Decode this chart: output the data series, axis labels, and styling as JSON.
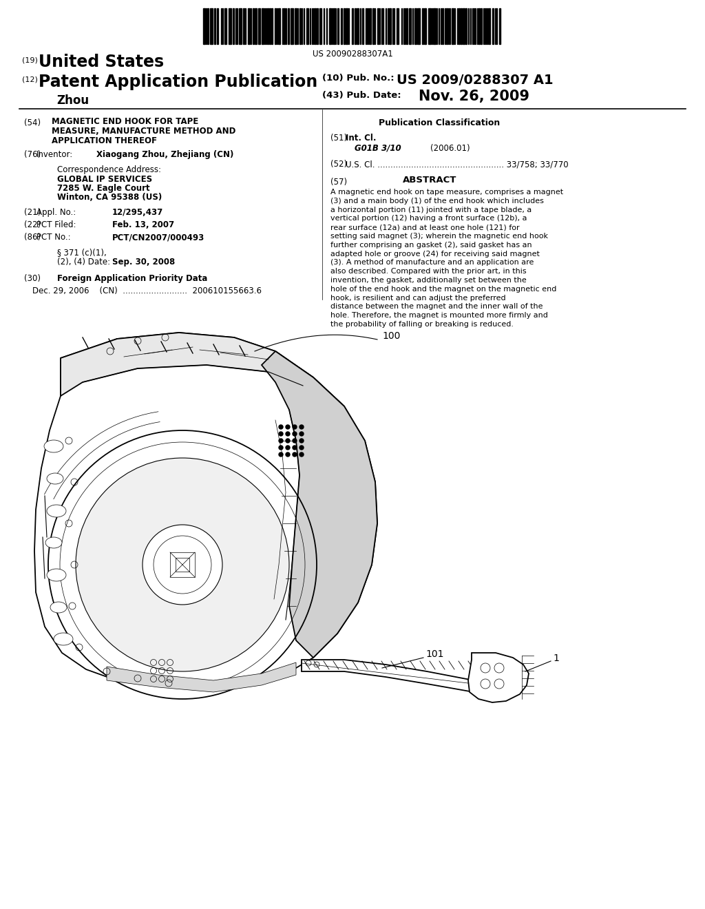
{
  "background_color": "#ffffff",
  "barcode_text": "US 20090288307A1",
  "header": {
    "country_label": "(19)",
    "country": "United States",
    "type_label": "(12)",
    "type": "Patent Application Publication",
    "pub_no_label": "(10) Pub. No.:",
    "pub_no": "US 2009/0288307 A1",
    "date_label": "(43) Pub. Date:",
    "date": "Nov. 26, 2009",
    "inventor": "Zhou"
  },
  "left_column": {
    "title_label": "(54)",
    "title_lines": [
      "MAGNETIC END HOOK FOR TAPE",
      "MEASURE, MANUFACTURE METHOD AND",
      "APPLICATION THEREOF"
    ],
    "inventor_label": "(76)",
    "inventor_key": "Inventor:",
    "inventor_value": "Xiaogang Zhou, Zhejiang (CN)",
    "corr_label": "Correspondence Address:",
    "corr_lines": [
      "GLOBAL IP SERVICES",
      "7285 W. Eagle Court",
      "Winton, CA 95388 (US)"
    ],
    "appl_label": "(21)",
    "appl_key": "Appl. No.:",
    "appl_value": "12/295,437",
    "pct_filed_label": "(22)",
    "pct_filed_key": "PCT Filed:",
    "pct_filed_value": "Feb. 13, 2007",
    "pct_no_label": "(86)",
    "pct_no_key": "PCT No.:",
    "pct_no_value": "PCT/CN2007/000493",
    "s371_line1": "§ 371 (c)(1),",
    "s371_line2": "(2), (4) Date:",
    "s371_date": "Sep. 30, 2008",
    "foreign_label": "(30)",
    "foreign_title": "Foreign Application Priority Data",
    "foreign_data": "Dec. 29, 2006    (CN)  .........................  200610155663.6"
  },
  "right_column": {
    "pub_class_title": "Publication Classification",
    "int_cl_label": "(51)",
    "int_cl_key": "Int. Cl.",
    "int_cl_value": "G01B 3/10",
    "int_cl_date": "(2006.01)",
    "us_cl_label": "(52)",
    "us_cl_key": "U.S. Cl.",
    "us_cl_dots": ".................................................",
    "us_cl_value": "33/758; 33/770",
    "abstract_label": "(57)",
    "abstract_title": "ABSTRACT",
    "abstract_text": "A magnetic end hook on tape measure, comprises a magnet (3) and a main body (1) of the end hook which includes a horizontal portion (11) jointed with a tape blade, a vertical portion (12) having a front surface (12b), a rear surface (12a) and at least one hole (121) for setting said magnet (3); wherein the magnetic end hook further comprising an gasket (2), said gasket has an adapted hole or groove (24) for receiving said magnet (3). A method of manufacture and an application are also described. Compared with the prior art, in this invention, the gasket, additionally set between the hole of the end hook and the magnet on the magnetic end hook, is resilient and can adjust the preferred distance between the magnet and the inner wall of the hole. Therefore, the magnet is mounted more firmly and the probability of falling or breaking is reduced."
  },
  "figure": {
    "label_100": "100",
    "label_101": "101",
    "label_1": "1"
  }
}
